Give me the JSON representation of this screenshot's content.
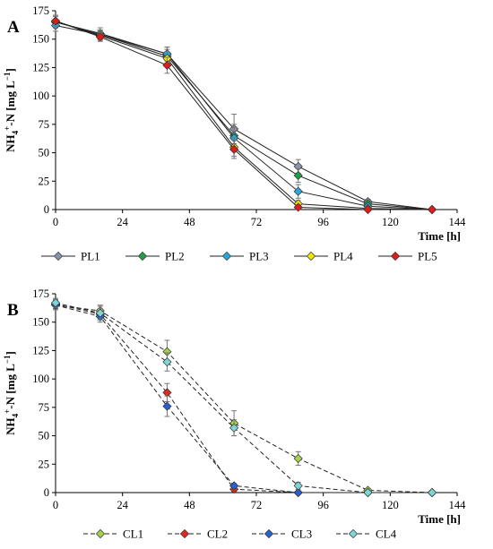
{
  "chart_data": [
    {
      "type": "line",
      "panel_label": "A",
      "xlabel": "Time [h]",
      "ylabel": {
        "main": "NH",
        "sub": "4",
        "sup": "+",
        "rest": "-N [mg L",
        "unit_sup": "−1",
        "close": "]"
      },
      "xlim": [
        0,
        144
      ],
      "ylim": [
        0,
        175
      ],
      "xticks": [
        "0",
        "24",
        "48",
        "72",
        "96",
        "120",
        "144"
      ],
      "yticks": [
        "0",
        "25",
        "50",
        "75",
        "100",
        "125",
        "150",
        "175"
      ],
      "line_style": "solid",
      "legend_position": "bottom",
      "series": [
        {
          "name": "PL1",
          "color": "#8a94a8",
          "x": [
            0,
            16,
            40,
            64,
            87,
            112,
            135
          ],
          "y": [
            165,
            155,
            137,
            71,
            38,
            7,
            0
          ],
          "err": [
            5,
            5,
            6,
            13,
            6,
            2,
            0
          ]
        },
        {
          "name": "PL2",
          "color": "#1fa046",
          "x": [
            0,
            16,
            40,
            64,
            87,
            112,
            135
          ],
          "y": [
            165,
            154,
            135,
            65,
            30,
            5,
            0
          ],
          "err": [
            5,
            4,
            6,
            10,
            6,
            2,
            0
          ]
        },
        {
          "name": "PL3",
          "color": "#25a8e0",
          "x": [
            0,
            16,
            40,
            64,
            87,
            112,
            135
          ],
          "y": [
            162,
            154,
            137,
            63,
            16,
            3,
            0
          ],
          "err": [
            5,
            4,
            6,
            9,
            6,
            1,
            0
          ]
        },
        {
          "name": "PL4",
          "color": "#f2e600",
          "x": [
            0,
            16,
            40,
            64,
            87,
            112,
            135
          ],
          "y": [
            166,
            153,
            133,
            55,
            5,
            1,
            0
          ],
          "err": [
            5,
            4,
            6,
            8,
            3,
            1,
            0
          ]
        },
        {
          "name": "PL5",
          "color": "#e01b1b",
          "x": [
            0,
            16,
            40,
            64,
            87,
            112,
            135
          ],
          "y": [
            166,
            152,
            127,
            53,
            2,
            0,
            0
          ],
          "err": [
            5,
            4,
            7,
            8,
            2,
            0,
            0
          ]
        }
      ]
    },
    {
      "type": "line",
      "panel_label": "B",
      "xlabel": "Time [h]",
      "ylabel": {
        "main": "NH",
        "sub": "4",
        "sup": "+",
        "rest": "-N [mg L",
        "unit_sup": "−1",
        "close": "]"
      },
      "xlim": [
        0,
        144
      ],
      "ylim": [
        0,
        175
      ],
      "xticks": [
        "0",
        "24",
        "48",
        "72",
        "96",
        "120",
        "144"
      ],
      "yticks": [
        "0",
        "25",
        "50",
        "75",
        "100",
        "125",
        "150",
        "175"
      ],
      "line_style": "dashed",
      "legend_position": "bottom",
      "series": [
        {
          "name": "CL1",
          "color": "#a6d24b",
          "x": [
            0,
            16,
            40,
            64,
            87,
            112,
            135
          ],
          "y": [
            165,
            160,
            124,
            61,
            30,
            2,
            0
          ],
          "err": [
            4,
            5,
            10,
            11,
            6,
            1,
            0
          ]
        },
        {
          "name": "CL2",
          "color": "#e0281b",
          "x": [
            0,
            16,
            40,
            64,
            87,
            112,
            135
          ],
          "y": [
            166,
            157,
            88,
            3,
            0,
            0,
            0
          ],
          "err": [
            4,
            5,
            8,
            2,
            0,
            0,
            0
          ]
        },
        {
          "name": "CL3",
          "color": "#2a5fd1",
          "x": [
            0,
            16,
            40,
            64,
            87,
            112,
            135
          ],
          "y": [
            165,
            155,
            76,
            6,
            0,
            0,
            0
          ],
          "err": [
            4,
            5,
            9,
            2,
            0,
            0,
            0
          ]
        },
        {
          "name": "CL4",
          "color": "#7fd6d6",
          "x": [
            0,
            16,
            40,
            64,
            87,
            112,
            135
          ],
          "y": [
            167,
            158,
            115,
            57,
            6,
            0,
            0
          ],
          "err": [
            4,
            6,
            8,
            7,
            3,
            0,
            0
          ]
        }
      ]
    }
  ]
}
